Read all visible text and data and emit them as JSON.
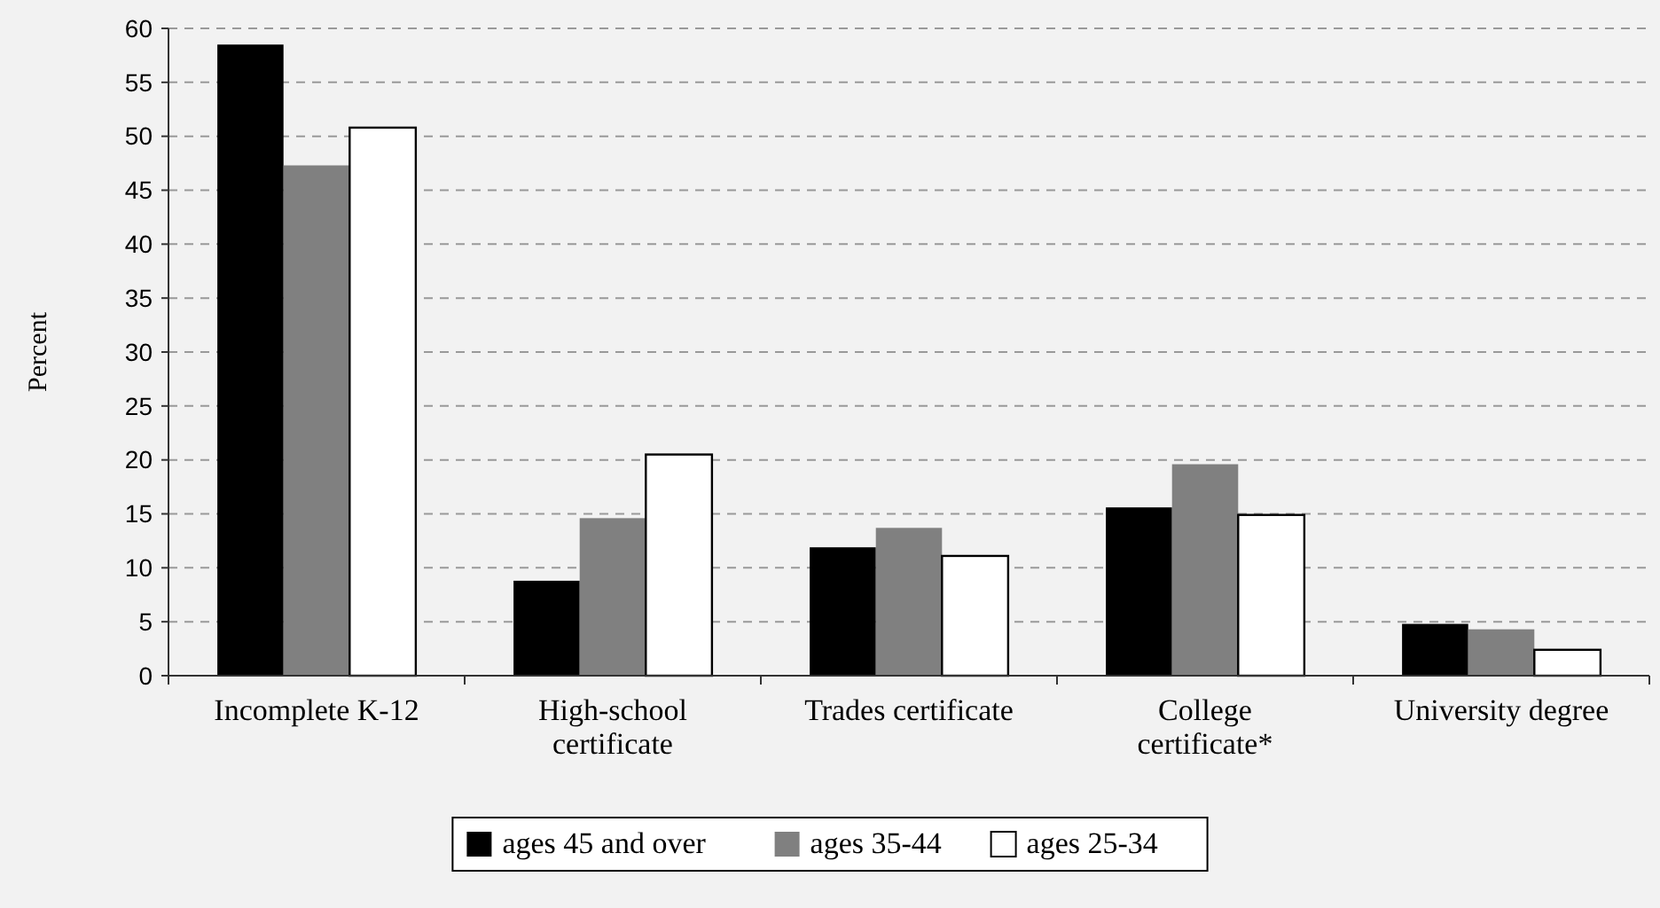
{
  "chart_data": {
    "type": "bar",
    "ylabel": "Percent",
    "categories": [
      "Incomplete K-12",
      "High-school certificate",
      "Trades certificate",
      "College certificate*",
      "University degree"
    ],
    "series": [
      {
        "name": "ages 45 and over",
        "color": "#000000",
        "values": [
          58.5,
          8.8,
          11.9,
          15.6,
          4.8
        ]
      },
      {
        "name": "ages 35-44",
        "color": "#808080",
        "values": [
          47.3,
          14.6,
          13.7,
          19.6,
          4.3
        ]
      },
      {
        "name": "ages 25-34",
        "color": "#ffffff",
        "values": [
          50.8,
          20.5,
          11.1,
          14.9,
          2.4
        ]
      }
    ],
    "ylim": [
      0,
      60
    ],
    "yticks": [
      0,
      5,
      10,
      15,
      20,
      25,
      30,
      35,
      40,
      45,
      50,
      55,
      60
    ],
    "grid": "y",
    "legend": "bottom"
  }
}
